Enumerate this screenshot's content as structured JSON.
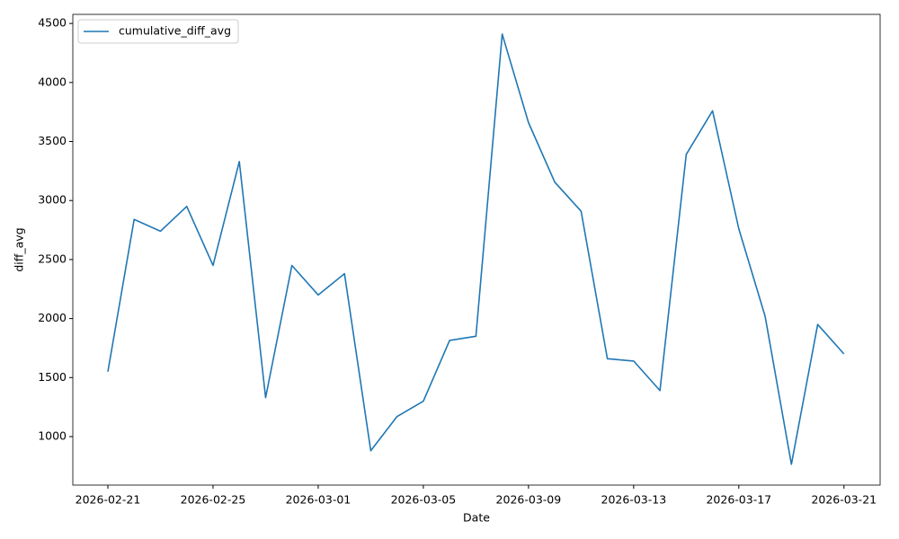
{
  "chart_data": {
    "type": "line",
    "xlabel": "Date",
    "ylabel": "diff_avg",
    "x": [
      "2026-02-21",
      "2026-02-22",
      "2026-02-23",
      "2026-02-24",
      "2026-02-25",
      "2026-02-26",
      "2026-02-27",
      "2026-02-28",
      "2026-03-01",
      "2026-03-02",
      "2026-03-03",
      "2026-03-04",
      "2026-03-05",
      "2026-03-06",
      "2026-03-07",
      "2026-03-08",
      "2026-03-09",
      "2026-03-10",
      "2026-03-11",
      "2026-03-12",
      "2026-03-13",
      "2026-03-14",
      "2026-03-15",
      "2026-03-16",
      "2026-03-17",
      "2026-03-18",
      "2026-03-19",
      "2026-03-20",
      "2026-03-21"
    ],
    "series": [
      {
        "name": "cumulative_diff_avg",
        "color": "#1f77b4",
        "values": [
          1550,
          2840,
          2740,
          2950,
          2450,
          3330,
          1330,
          2450,
          2200,
          2380,
          880,
          1170,
          1300,
          1815,
          1850,
          4410,
          3660,
          3155,
          2910,
          1660,
          1640,
          1390,
          3390,
          3760,
          2760,
          2020,
          765,
          1950,
          1700
        ]
      }
    ],
    "xlim": [
      "2026-02-19T16:00",
      "2026-03-22T09:00"
    ],
    "xticks": [
      "2026-02-21",
      "2026-02-25",
      "2026-03-01",
      "2026-03-05",
      "2026-03-09",
      "2026-03-13",
      "2026-03-17",
      "2026-03-21"
    ],
    "ylim": [
      589,
      4577
    ],
    "yticks": [
      1000,
      1500,
      2000,
      2500,
      3000,
      3500,
      4000,
      4500
    ],
    "grid": false,
    "legend": "upper left"
  }
}
